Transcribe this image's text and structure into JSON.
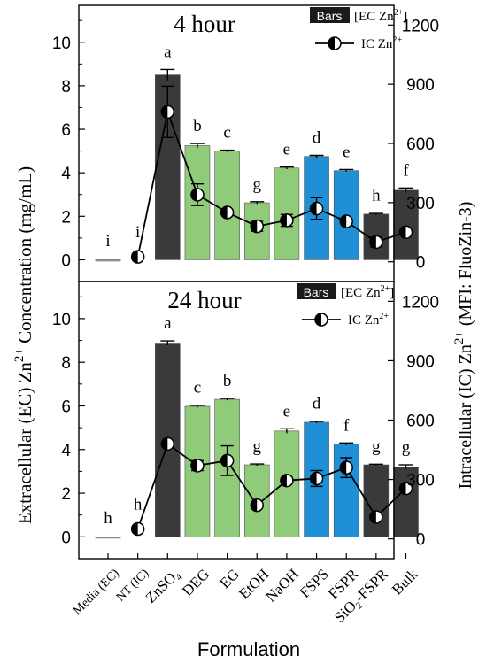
{
  "figure": {
    "y_left_label": "Extracellular (EC) Zn",
    "y_left_label_sup": "2+",
    "y_left_label_tail": " Concentration (mg/mL)",
    "y_right_label": "Intracellular (IC) Zn",
    "y_right_label_sup": "2+",
    "y_right_label_tail": " (MFI: FluoZin-3)",
    "x_label": "Formulation",
    "legend_bar_swatch": "Bars",
    "legend_bar_text": "[EC Zn",
    "legend_bar_sup": "2+",
    "legend_bar_close": "]",
    "legend_line_text": "IC Zn",
    "legend_line_sup": "2+"
  },
  "categories": [
    "Media (EC)",
    "NT (IC)",
    "ZnSO4",
    "DEG",
    "EG",
    "EtOH",
    "NaOH",
    "FSPS",
    "FSPR",
    "SiO2-FSPR",
    "Bulk"
  ],
  "category_labels": [
    {
      "text": "Media (EC)"
    },
    {
      "text": "NT (IC)"
    },
    {
      "text": "ZnSO",
      "sub": "4"
    },
    {
      "text": "DEG"
    },
    {
      "text": "EG"
    },
    {
      "text": "EtOH"
    },
    {
      "text": "NaOH"
    },
    {
      "text": "FSPS"
    },
    {
      "text": "FSPR"
    },
    {
      "text": "SiO",
      "sub": "2",
      "tail": "-FSPR"
    },
    {
      "text": "Bulk"
    }
  ],
  "colors": {
    "media": "#b4b6b6",
    "dark": "#3a3a3c",
    "green": "#8fcb78",
    "blue": "#1f8fd6",
    "axis": "#000000"
  },
  "chart_data": [
    {
      "type": "bar",
      "title": "4 hour",
      "bar_categories": [
        "Media (EC)",
        "ZnSO4",
        "DEG",
        "EG",
        "EtOH",
        "NaOH",
        "FSPS",
        "FSPR",
        "SiO2-FSPR",
        "Bulk"
      ],
      "bar_values": [
        0.0,
        8.5,
        5.25,
        5.0,
        2.62,
        4.22,
        4.75,
        4.1,
        2.1,
        3.2
      ],
      "bar_errors": [
        0.0,
        0.25,
        0.1,
        0.04,
        0.05,
        0.05,
        0.05,
        0.05,
        0.03,
        0.1
      ],
      "bar_colors": [
        "media",
        "dark",
        "green",
        "green",
        "green",
        "green",
        "blue",
        "blue",
        "dark",
        "dark"
      ],
      "significance_letters": [
        "i",
        "a",
        "b",
        "c",
        "g",
        "e",
        "d",
        "e",
        "h",
        "f"
      ],
      "line_categories": [
        "NT (IC)",
        "ZnSO4",
        "DEG",
        "EG",
        "EtOH",
        "NaOH",
        "FSPS",
        "FSPR",
        "SiO2-FSPR",
        "Bulk"
      ],
      "line_values": [
        25,
        760,
        340,
        250,
        180,
        210,
        270,
        205,
        100,
        150
      ],
      "line_errors": [
        0,
        130,
        55,
        0,
        25,
        30,
        55,
        0,
        25,
        0
      ],
      "ylim_left": [
        -1,
        11.7
      ],
      "yticks_left": [
        0,
        2,
        4,
        6,
        8,
        10
      ],
      "ylim_right": [
        -100,
        1300
      ],
      "yticks_right": [
        0,
        300,
        600,
        900,
        1200
      ],
      "legend_position": "top-right"
    },
    {
      "type": "bar",
      "title": "24 hour",
      "bar_categories": [
        "Media (EC)",
        "ZnSO4",
        "DEG",
        "EG",
        "EtOH",
        "NaOH",
        "FSPS",
        "FSPR",
        "SiO2-FSPR",
        "Bulk"
      ],
      "bar_values": [
        0.0,
        8.88,
        5.98,
        6.3,
        3.3,
        4.85,
        5.25,
        4.25,
        3.3,
        3.2
      ],
      "bar_errors": [
        0.0,
        0.1,
        0.05,
        0.04,
        0.04,
        0.1,
        0.04,
        0.05,
        0.03,
        0.1
      ],
      "bar_colors": [
        "media",
        "dark",
        "green",
        "green",
        "green",
        "green",
        "blue",
        "blue",
        "dark",
        "dark"
      ],
      "significance_letters": [
        "h",
        "a",
        "c",
        "b",
        "g",
        "e",
        "d",
        "f",
        "g",
        "g"
      ],
      "line_categories": [
        "NT (IC)",
        "ZnSO4",
        "DEG",
        "EG",
        "EtOH",
        "NaOH",
        "FSPS",
        "FSPR",
        "SiO2-FSPR",
        "Bulk"
      ],
      "line_values": [
        50,
        480,
        370,
        395,
        170,
        295,
        305,
        360,
        110,
        255
      ],
      "line_errors": [
        0,
        0,
        25,
        75,
        0,
        0,
        40,
        50,
        0,
        0
      ],
      "ylim_left": [
        -1,
        11.7
      ],
      "yticks_left": [
        0,
        2,
        4,
        6,
        8,
        10
      ],
      "ylim_right": [
        -100,
        1300
      ],
      "yticks_right": [
        0,
        300,
        600,
        900,
        1200
      ],
      "legend_position": "top-right"
    }
  ]
}
